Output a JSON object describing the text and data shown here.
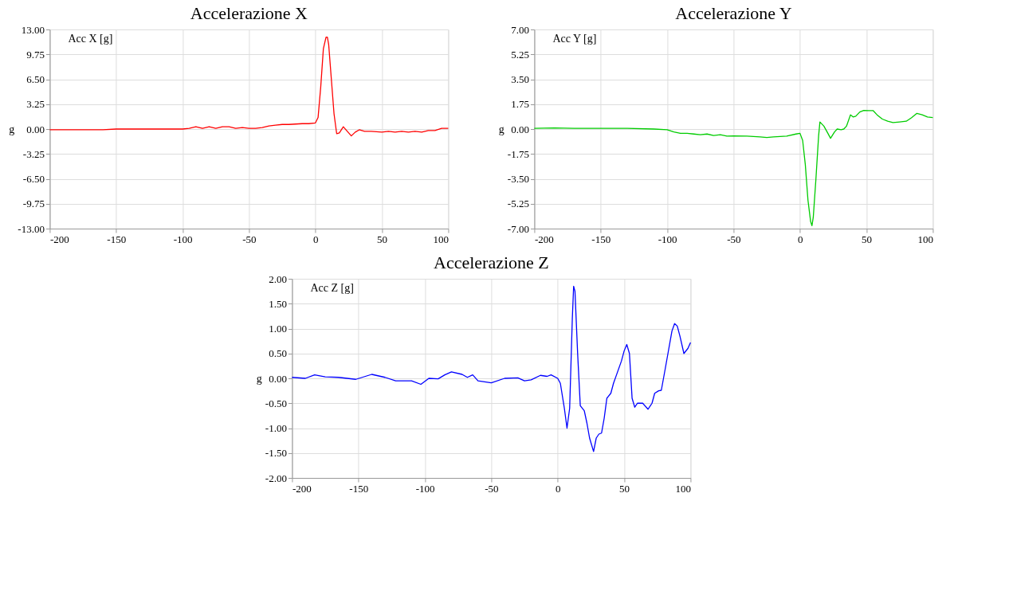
{
  "chart_data": [
    {
      "type": "line",
      "title": "Accelerazione X",
      "ylabel": "g",
      "legend": "top left",
      "grid": true,
      "marker": "none",
      "line_style": "solid",
      "xlim": [
        -200,
        100
      ],
      "xticks": [
        -200,
        -150,
        -100,
        -50,
        0,
        50,
        100
      ],
      "ylim": [
        -13,
        13
      ],
      "yticks": [
        {
          "value": -13,
          "label": "-13.00"
        },
        {
          "value": -9.75,
          "label": "-9.75"
        },
        {
          "value": -6.5,
          "label": "-6.50"
        },
        {
          "value": -3.25,
          "label": "-3.25"
        },
        {
          "value": 0,
          "label": "0.00"
        },
        {
          "value": 3.25,
          "label": "3.25"
        },
        {
          "value": 6.5,
          "label": "6.50"
        },
        {
          "value": 9.75,
          "label": "9.75"
        },
        {
          "value": 13,
          "label": "13.00"
        }
      ],
      "series": [
        {
          "name": "Acc X [g]",
          "color": "#ff0000",
          "x": [
            -200,
            -160,
            -150,
            -100,
            -95,
            -90,
            -85,
            -80,
            -75,
            -70,
            -65,
            -60,
            -55,
            -50,
            -45,
            -40,
            -35,
            -30,
            -25,
            -20,
            -10,
            -5,
            0,
            2,
            4,
            6,
            8,
            9,
            10,
            12,
            14,
            16,
            18,
            21,
            24,
            27,
            30,
            33,
            37,
            42,
            50,
            55,
            60,
            65,
            70,
            75,
            80,
            85,
            90,
            95,
            100
          ],
          "values": [
            -0.1,
            -0.1,
            0,
            0,
            0.1,
            0.3,
            0.1,
            0.3,
            0.1,
            0.3,
            0.3,
            0.1,
            0.2,
            0.1,
            0.1,
            0.2,
            0.4,
            0.5,
            0.6,
            0.6,
            0.7,
            0.7,
            0.8,
            1.5,
            5.5,
            10.5,
            12.0,
            12.0,
            11.0,
            6.5,
            2.0,
            -0.6,
            -0.5,
            0.3,
            -0.3,
            -0.9,
            -0.4,
            -0.1,
            -0.3,
            -0.3,
            -0.4,
            -0.3,
            -0.4,
            -0.3,
            -0.4,
            -0.3,
            -0.4,
            -0.2,
            -0.2,
            0.1,
            0.1
          ]
        }
      ]
    },
    {
      "type": "line",
      "title": "Accelerazione Y",
      "ylabel": "g",
      "legend": "top left",
      "grid": true,
      "marker": "none",
      "line_style": "solid",
      "xlim": [
        -200,
        100
      ],
      "xticks": [
        -200,
        -150,
        -100,
        -50,
        0,
        50,
        100
      ],
      "ylim": [
        -7,
        7
      ],
      "yticks": [
        {
          "value": -7,
          "label": "-7.00"
        },
        {
          "value": -5.25,
          "label": "-5.25"
        },
        {
          "value": -3.5,
          "label": "-3.50"
        },
        {
          "value": -1.75,
          "label": "-1.75"
        },
        {
          "value": 0,
          "label": "0.00"
        },
        {
          "value": 1.75,
          "label": "1.75"
        },
        {
          "value": 3.5,
          "label": "3.50"
        },
        {
          "value": 5.25,
          "label": "5.25"
        },
        {
          "value": 7,
          "label": "7.00"
        }
      ],
      "series": [
        {
          "name": "Acc Y [g]",
          "color": "#00cc00",
          "x": [
            -200,
            -185,
            -170,
            -150,
            -130,
            -110,
            -100,
            -95,
            -90,
            -85,
            -80,
            -75,
            -70,
            -65,
            -60,
            -55,
            -50,
            -40,
            -30,
            -25,
            -20,
            -10,
            -3,
            0,
            2,
            4,
            6,
            8,
            9,
            10,
            12,
            14,
            15,
            18,
            21,
            23,
            26,
            28,
            31,
            33,
            35,
            38,
            40,
            42,
            45,
            48,
            52,
            55,
            58,
            62,
            66,
            70,
            75,
            80,
            84,
            88,
            92,
            96,
            100
          ],
          "values": [
            0.05,
            0.08,
            0.05,
            0.05,
            0.05,
            0,
            -0.05,
            -0.2,
            -0.3,
            -0.3,
            -0.35,
            -0.4,
            -0.35,
            -0.45,
            -0.4,
            -0.5,
            -0.48,
            -0.5,
            -0.55,
            -0.6,
            -0.55,
            -0.5,
            -0.35,
            -0.3,
            -0.8,
            -2.5,
            -5.0,
            -6.5,
            -6.8,
            -6.2,
            -3.5,
            -0.5,
            0.5,
            0.2,
            -0.3,
            -0.65,
            -0.2,
            0,
            -0.05,
            0,
            0.2,
            1.0,
            0.85,
            0.9,
            1.2,
            1.31,
            1.3,
            1.3,
            1.0,
            0.7,
            0.55,
            0.45,
            0.5,
            0.55,
            0.8,
            1.1,
            1.0,
            0.85,
            0.8
          ]
        }
      ]
    },
    {
      "type": "line",
      "title": "Accelerazione Z",
      "ylabel": "g",
      "legend": "top left",
      "grid": true,
      "marker": "none",
      "line_style": "solid",
      "xlim": [
        -200,
        100
      ],
      "xticks": [
        -200,
        -150,
        -100,
        -50,
        0,
        50,
        100
      ],
      "ylim": [
        -2,
        2
      ],
      "yticks": [
        {
          "value": -2,
          "label": "-2.00"
        },
        {
          "value": -1.5,
          "label": "-1.50"
        },
        {
          "value": -1,
          "label": "-1.00"
        },
        {
          "value": -0.5,
          "label": "-0.50"
        },
        {
          "value": 0,
          "label": "0.00"
        },
        {
          "value": 0.5,
          "label": "0.50"
        },
        {
          "value": 1,
          "label": "1.00"
        },
        {
          "value": 1.5,
          "label": "1.50"
        },
        {
          "value": 2,
          "label": "2.00"
        }
      ],
      "series": [
        {
          "name": "Acc Z [g]",
          "color": "#0000ff",
          "x": [
            -200,
            -190,
            -183,
            -175,
            -165,
            -152,
            -140,
            -130,
            -122,
            -110,
            -103,
            -97,
            -90,
            -85,
            -80,
            -72,
            -68,
            -64,
            -60,
            -50,
            -40,
            -30,
            -25,
            -20,
            -13,
            -8,
            -5,
            0,
            2,
            5,
            7,
            9,
            11,
            12,
            13,
            15,
            17,
            20,
            22,
            24,
            27,
            29,
            31,
            33,
            35,
            37,
            40,
            42,
            44,
            48,
            50,
            52,
            54,
            56,
            58,
            60,
            64,
            68,
            71,
            73,
            76,
            78,
            81,
            83,
            86,
            88,
            90,
            92,
            95,
            98,
            100
          ],
          "values": [
            0.02,
            0,
            0.07,
            0.03,
            0.02,
            -0.02,
            0.08,
            0.02,
            -0.05,
            -0.05,
            -0.12,
            0,
            -0.01,
            0.07,
            0.13,
            0.08,
            0.02,
            0.07,
            -0.05,
            -0.09,
            0,
            0.01,
            -0.05,
            -0.03,
            0.06,
            0.04,
            0.07,
            0,
            -0.1,
            -0.6,
            -1.0,
            -0.6,
            1.2,
            1.85,
            1.75,
            0.5,
            -0.55,
            -0.65,
            -0.9,
            -1.2,
            -1.47,
            -1.2,
            -1.12,
            -1.1,
            -0.8,
            -0.4,
            -0.3,
            -0.1,
            0.05,
            0.35,
            0.55,
            0.68,
            0.5,
            -0.4,
            -0.58,
            -0.5,
            -0.5,
            -0.62,
            -0.5,
            -0.3,
            -0.25,
            -0.24,
            0.2,
            0.5,
            0.95,
            1.1,
            1.05,
            0.85,
            0.5,
            0.6,
            0.72
          ]
        }
      ]
    }
  ]
}
